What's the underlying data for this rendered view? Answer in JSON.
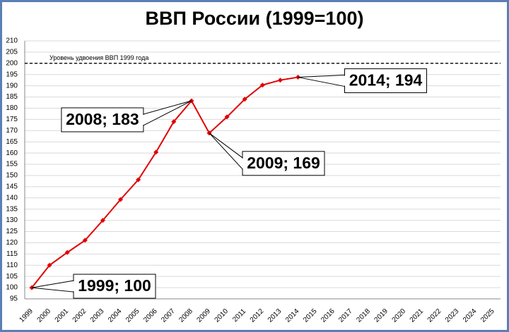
{
  "chart_data": {
    "type": "line",
    "title": "ВВП России (1999=100)",
    "categories": [
      "1999",
      "2000",
      "2001",
      "2002",
      "2003",
      "2004",
      "2005",
      "2006",
      "2007",
      "2008",
      "2009",
      "2010",
      "2011",
      "2012",
      "2013",
      "2014",
      "2015",
      "2016",
      "2017",
      "2018",
      "2019",
      "2020",
      "2021",
      "2022",
      "2023",
      "2024",
      "2025"
    ],
    "series": [
      {
        "color": "#e00000",
        "values": [
          100,
          110,
          115.7,
          121.1,
          130,
          139.3,
          148.1,
          160.4,
          174,
          183.3,
          168.9,
          176.1,
          184,
          190.3,
          192.5,
          193.8,
          null,
          null,
          null,
          null,
          null,
          null,
          null,
          null,
          null,
          null,
          null
        ],
        "value_labels": [
          "1999; 100",
          null,
          null,
          null,
          null,
          null,
          null,
          null,
          null,
          "2008; 183",
          "2009; 169",
          null,
          null,
          null,
          null,
          "2014; 194",
          null,
          null,
          null,
          null,
          null,
          null,
          null,
          null,
          null,
          null,
          null
        ]
      }
    ],
    "reference_line": {
      "value": 200,
      "label": "Уровень удвоения ВВП 1999 года"
    },
    "ylim": [
      95,
      210
    ],
    "yticks": [
      95,
      100,
      105,
      110,
      115,
      120,
      125,
      130,
      135,
      140,
      145,
      150,
      155,
      160,
      165,
      170,
      175,
      180,
      185,
      190,
      195,
      200,
      205,
      210
    ],
    "grid": true
  }
}
